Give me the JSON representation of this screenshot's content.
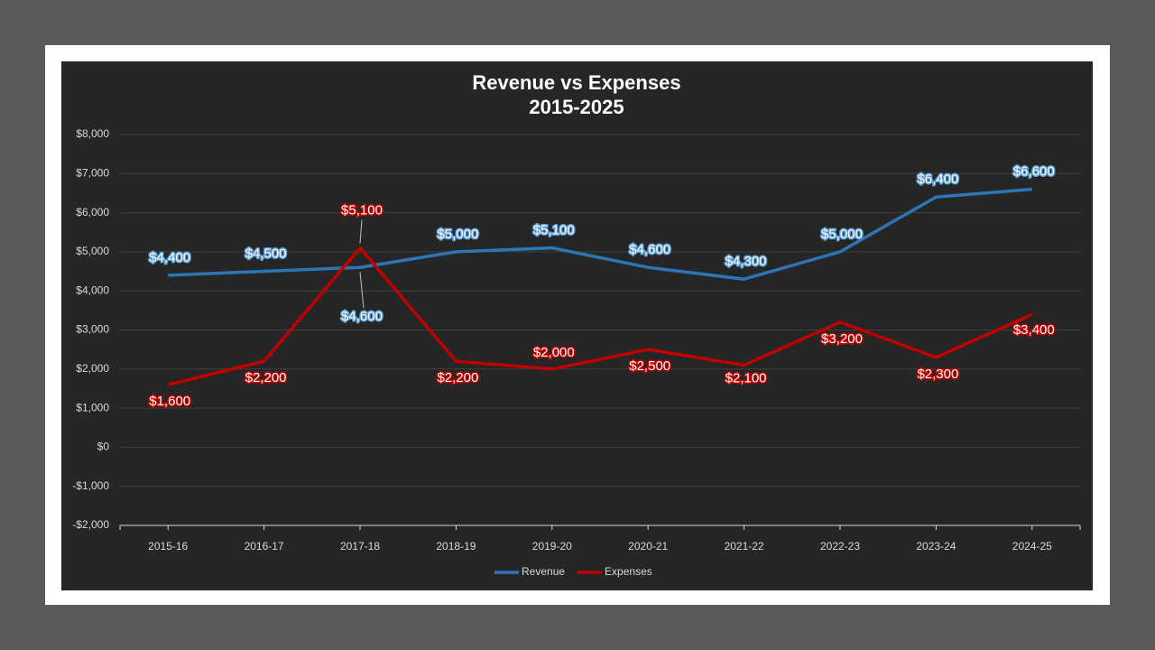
{
  "chart_data": {
    "type": "line",
    "title": "Revenue vs Expenses",
    "subtitle": "2015-2025",
    "categories": [
      "2015-16",
      "2016-17",
      "2017-18",
      "2018-19",
      "2019-20",
      "2020-21",
      "2021-22",
      "2022-23",
      "2023-24",
      "2024-25"
    ],
    "series": [
      {
        "name": "Revenue",
        "color": "#2e75b6",
        "values": [
          4400,
          4500,
          4600,
          5000,
          5100,
          4600,
          4300,
          5000,
          6400,
          6600
        ],
        "value_labels": [
          "$4,400",
          "$4,500",
          "$4,600",
          "$5,000",
          "$5,100",
          "$4,600",
          "$4,300",
          "$5,000",
          "$6,400",
          "$6,600"
        ]
      },
      {
        "name": "Expenses",
        "color": "#c00000",
        "values": [
          1600,
          2200,
          5100,
          2200,
          2000,
          2500,
          2100,
          3200,
          2300,
          3400
        ],
        "value_labels": [
          "$1,600",
          "$2,200",
          "$5,100",
          "$2,200",
          "$2,000",
          "$2,500",
          "$2,100",
          "$3,200",
          "$2,300",
          "$3,400"
        ]
      }
    ],
    "ylim": [
      -2000,
      8000
    ],
    "yticks": [
      {
        "value": -2000,
        "label": "-$2,000"
      },
      {
        "value": -1000,
        "label": "-$1,000"
      },
      {
        "value": 0,
        "label": "$0"
      },
      {
        "value": 1000,
        "label": "$1,000"
      },
      {
        "value": 2000,
        "label": "$2,000"
      },
      {
        "value": 3000,
        "label": "$3,000"
      },
      {
        "value": 4000,
        "label": "$4,000"
      },
      {
        "value": 5000,
        "label": "$5,000"
      },
      {
        "value": 6000,
        "label": "$6,000"
      },
      {
        "value": 7000,
        "label": "$7,000"
      },
      {
        "value": 8000,
        "label": "$8,000"
      }
    ],
    "grid": true,
    "legend": "bottom"
  }
}
